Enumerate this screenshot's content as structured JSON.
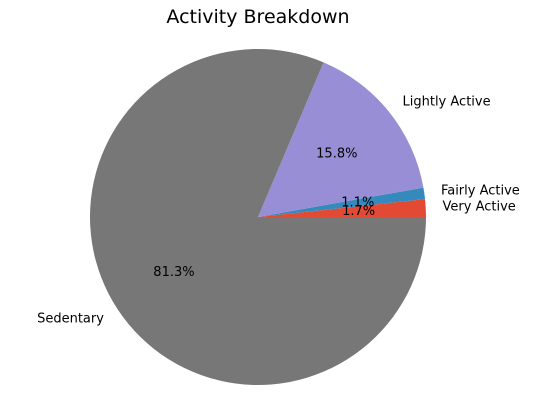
{
  "chart_data": {
    "type": "pie",
    "title": "Activity Breakdown",
    "labels": [
      "Very Active",
      "Fairly Active",
      "Lightly Active",
      "Sedentary"
    ],
    "values": [
      1.7,
      1.1,
      15.8,
      81.3
    ],
    "percent_labels": [
      "1.7%",
      "1.1%",
      "15.8%",
      "81.3%"
    ],
    "colors": [
      "#E24A33",
      "#348ABD",
      "#988ED5",
      "#777777"
    ],
    "start_angle_deg": 0,
    "direction": "counterclockwise"
  }
}
